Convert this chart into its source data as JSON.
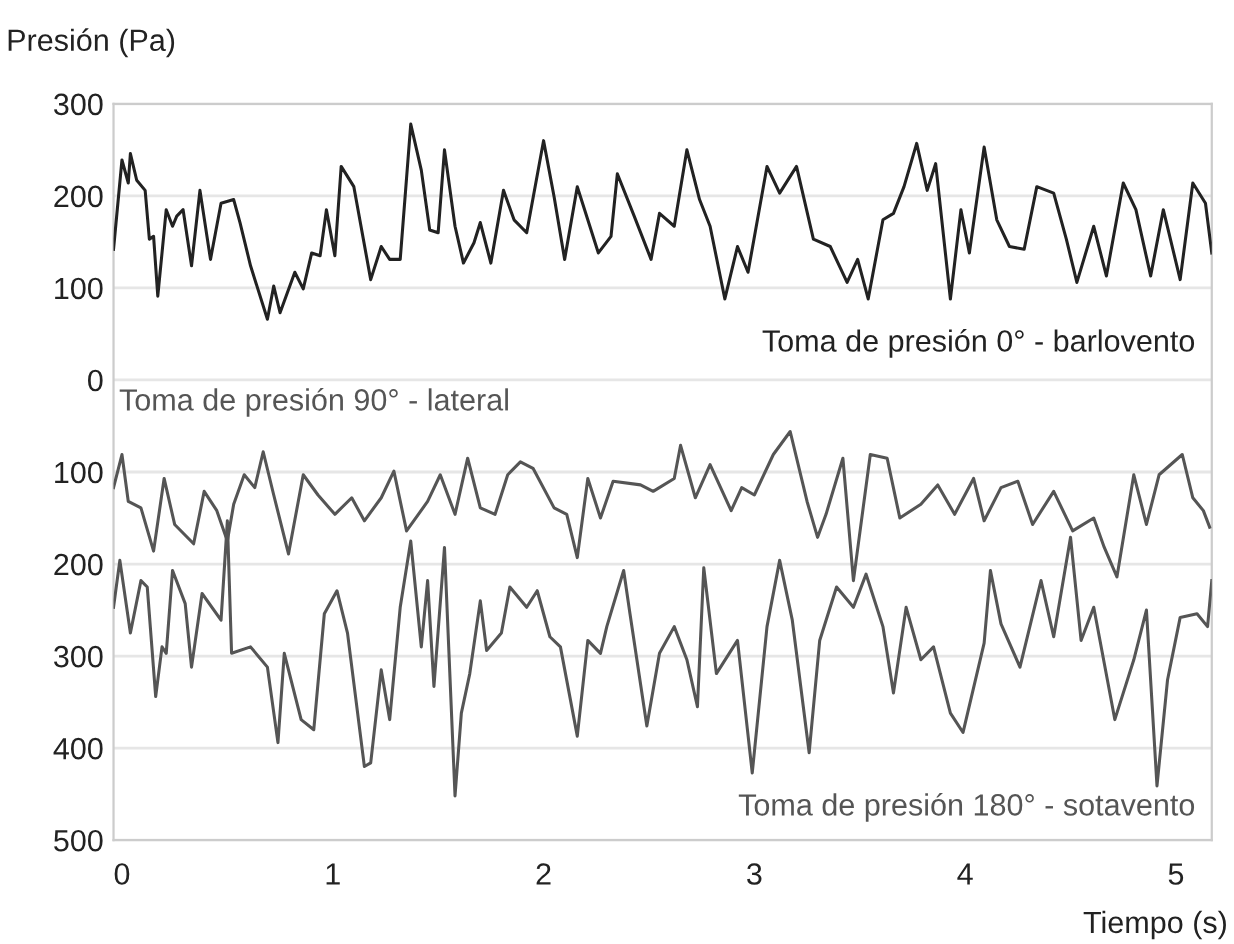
{
  "chart_data": {
    "type": "line",
    "ylabel": "Presión (Pa)",
    "xlabel": "Tiempo (s)",
    "xlim": [
      -0.04,
      5.17
    ],
    "xticks": [
      0,
      1,
      2,
      3,
      4,
      5
    ],
    "ylim": [
      -500,
      300
    ],
    "yticks": [
      300,
      200,
      100,
      0,
      {
        "value": -100,
        "label": "100"
      },
      {
        "value": -200,
        "label": "200"
      },
      {
        "value": -300,
        "label": "300"
      },
      {
        "value": -400,
        "label": "400"
      },
      {
        "value": -500,
        "label": "500"
      }
    ],
    "grid": "y",
    "legend": false,
    "marker": "none",
    "line_style": "solid",
    "series": [
      {
        "name": "Toma de presión 0° - barlovento",
        "color": "#222222",
        "x": [
          -0.04,
          0.0,
          0.03,
          0.04,
          0.07,
          0.11,
          0.13,
          0.15,
          0.17,
          0.21,
          0.24,
          0.26,
          0.29,
          0.33,
          0.37,
          0.42,
          0.47,
          0.53,
          0.56,
          0.61,
          0.69,
          0.72,
          0.75,
          0.82,
          0.86,
          0.9,
          0.94,
          0.97,
          1.01,
          1.04,
          1.1,
          1.18,
          1.23,
          1.27,
          1.32,
          1.37,
          1.42,
          1.46,
          1.5,
          1.53,
          1.58,
          1.62,
          1.67,
          1.7,
          1.75,
          1.81,
          1.86,
          1.92,
          2.0,
          2.05,
          2.1,
          2.16,
          2.26,
          2.32,
          2.35,
          2.43,
          2.51,
          2.55,
          2.62,
          2.68,
          2.74,
          2.79,
          2.86,
          2.92,
          2.97,
          3.06,
          3.12,
          3.2,
          3.28,
          3.36,
          3.44,
          3.49,
          3.54,
          3.61,
          3.66,
          3.71,
          3.77,
          3.82,
          3.86,
          3.93,
          3.98,
          4.02,
          4.09,
          4.15,
          4.21,
          4.28,
          4.34,
          4.42,
          4.48,
          4.53,
          4.61,
          4.67,
          4.75,
          4.81,
          4.88,
          4.94,
          5.02,
          5.08,
          5.14,
          5.17
        ],
        "values": [
          142,
          239,
          214,
          246,
          217,
          206,
          153,
          156,
          91,
          185,
          167,
          178,
          185,
          124,
          206,
          131,
          192,
          196,
          171,
          124,
          66,
          102,
          73,
          117,
          99,
          138,
          135,
          185,
          135,
          232,
          210,
          109,
          145,
          131,
          131,
          278,
          228,
          163,
          160,
          250,
          167,
          127,
          149,
          171,
          127,
          206,
          174,
          160,
          260,
          199,
          131,
          210,
          138,
          156,
          224,
          178,
          131,
          181,
          167,
          250,
          196,
          167,
          88,
          145,
          117,
          232,
          203,
          232,
          153,
          145,
          106,
          131,
          88,
          174,
          181,
          210,
          257,
          206,
          235,
          88,
          185,
          138,
          253,
          174,
          145,
          142,
          210,
          203,
          153,
          106,
          167,
          113,
          214,
          185,
          113,
          185,
          109,
          214,
          192,
          138
        ]
      },
      {
        "name": "Toma de presión 90° - lateral",
        "color": "#555555",
        "x": [
          -0.04,
          0.0,
          0.03,
          0.09,
          0.15,
          0.2,
          0.25,
          0.34,
          0.39,
          0.45,
          0.5,
          0.53,
          0.58,
          0.63,
          0.67,
          0.72,
          0.79,
          0.86,
          0.93,
          1.01,
          1.09,
          1.15,
          1.23,
          1.29,
          1.35,
          1.45,
          1.51,
          1.58,
          1.64,
          1.7,
          1.77,
          1.83,
          1.89,
          1.95,
          2.05,
          2.11,
          2.16,
          2.21,
          2.27,
          2.33,
          2.46,
          2.52,
          2.62,
          2.65,
          2.72,
          2.79,
          2.89,
          2.94,
          3.0,
          3.09,
          3.17,
          3.25,
          3.3,
          3.34,
          3.42,
          3.47,
          3.55,
          3.63,
          3.69,
          3.79,
          3.87,
          3.95,
          4.04,
          4.09,
          4.17,
          4.25,
          4.32,
          4.42,
          4.51,
          4.61,
          4.66,
          4.72,
          4.8,
          4.86,
          4.92,
          5.03,
          5.08,
          5.13,
          5.16
        ],
        "values": [
          -117,
          -81,
          -132,
          -139,
          -186,
          -107,
          -157,
          -178,
          -121,
          -142,
          -175,
          -135,
          -103,
          -117,
          -78,
          -125,
          -189,
          -103,
          -125,
          -146,
          -128,
          -153,
          -128,
          -99,
          -164,
          -132,
          -103,
          -146,
          -85,
          -139,
          -146,
          -103,
          -89,
          -96,
          -139,
          -146,
          -193,
          -107,
          -150,
          -110,
          -114,
          -121,
          -107,
          -71,
          -128,
          -92,
          -142,
          -117,
          -125,
          -81,
          -56,
          -132,
          -171,
          -146,
          -85,
          -218,
          -81,
          -85,
          -150,
          -135,
          -114,
          -146,
          -107,
          -153,
          -117,
          -110,
          -157,
          -121,
          -164,
          -150,
          -182,
          -214,
          -103,
          -157,
          -103,
          -81,
          -128,
          -142,
          -160
        ]
      },
      {
        "name": "Toma de presión 180° - sotavento",
        "color": "#555555",
        "x": [
          -0.04,
          -0.01,
          0.04,
          0.09,
          0.12,
          0.16,
          0.19,
          0.21,
          0.24,
          0.3,
          0.33,
          0.38,
          0.47,
          0.5,
          0.52,
          0.61,
          0.69,
          0.74,
          0.77,
          0.85,
          0.91,
          0.96,
          1.02,
          1.07,
          1.15,
          1.18,
          1.23,
          1.27,
          1.32,
          1.37,
          1.42,
          1.45,
          1.48,
          1.53,
          1.58,
          1.61,
          1.65,
          1.7,
          1.73,
          1.8,
          1.84,
          1.92,
          1.97,
          2.03,
          2.08,
          2.16,
          2.21,
          2.27,
          2.3,
          2.38,
          2.41,
          2.49,
          2.55,
          2.62,
          2.68,
          2.73,
          2.76,
          2.82,
          2.92,
          2.99,
          3.06,
          3.12,
          3.18,
          3.26,
          3.31,
          3.39,
          3.47,
          3.53,
          3.61,
          3.66,
          3.72,
          3.79,
          3.85,
          3.93,
          3.99,
          4.09,
          4.12,
          4.17,
          4.26,
          4.36,
          4.42,
          4.5,
          4.55,
          4.61,
          4.71,
          4.8,
          4.86,
          4.91,
          4.96,
          5.02,
          5.1,
          5.15,
          5.17
        ],
        "values": [
          -247,
          -196,
          -275,
          -218,
          -225,
          -344,
          -290,
          -297,
          -207,
          -243,
          -312,
          -232,
          -261,
          -153,
          -297,
          -290,
          -312,
          -394,
          -297,
          -369,
          -380,
          -254,
          -229,
          -275,
          -420,
          -416,
          -315,
          -369,
          -247,
          -175,
          -290,
          -218,
          -333,
          -182,
          -452,
          -362,
          -319,
          -240,
          -294,
          -275,
          -225,
          -247,
          -229,
          -279,
          -290,
          -387,
          -283,
          -297,
          -268,
          -207,
          -254,
          -376,
          -297,
          -268,
          -304,
          -355,
          -204,
          -319,
          -283,
          -427,
          -268,
          -196,
          -261,
          -405,
          -283,
          -225,
          -247,
          -211,
          -268,
          -340,
          -247,
          -304,
          -290,
          -362,
          -383,
          -286,
          -207,
          -265,
          -312,
          -218,
          -279,
          -171,
          -283,
          -247,
          -369,
          -304,
          -250,
          -441,
          -326,
          -258,
          -254,
          -268,
          -218
        ]
      }
    ]
  }
}
